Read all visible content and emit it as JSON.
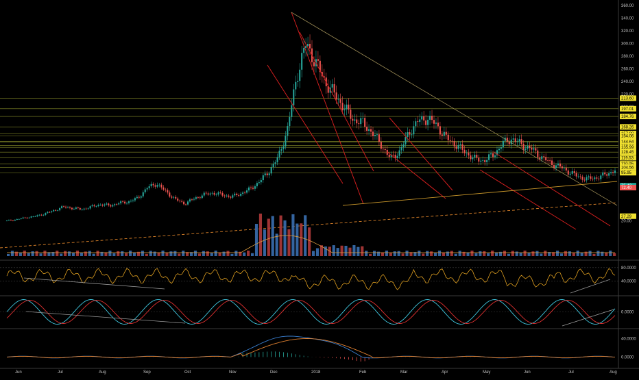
{
  "chart_data": [
    {
      "type": "candlestick",
      "panel": "price",
      "y_ticks": [
        360,
        340,
        320,
        300,
        280,
        260,
        240,
        220,
        200
      ],
      "ylim": [
        0,
        360
      ],
      "price_levels": [
        {
          "label": "213.60",
          "value": 213.6,
          "color": "yellow"
        },
        {
          "label": "197.01",
          "value": 197.01,
          "color": "yellow"
        },
        {
          "label": "184.76",
          "value": 184.76,
          "color": "yellow"
        },
        {
          "label": "168.26",
          "value": 168.26,
          "color": "yellow"
        },
        {
          "label": "157.88",
          "value": 157.88,
          "color": "yellow"
        },
        {
          "label": "154.06",
          "value": 154.06,
          "color": "yellow"
        },
        {
          "label": "145.47",
          "value": 145.47,
          "color": "yellow"
        },
        {
          "label": "144.64",
          "value": 144.64,
          "color": "yellow"
        },
        {
          "label": "138.84",
          "value": 138.84,
          "color": "yellow"
        },
        {
          "label": "135.99",
          "value": 135.99,
          "color": "yellow"
        },
        {
          "label": "128.45",
          "value": 128.45,
          "color": "yellow"
        },
        {
          "label": "119.53",
          "value": 119.53,
          "color": "yellow"
        },
        {
          "label": "110.05",
          "value": 110.05,
          "color": "yellow"
        },
        {
          "label": "104.56",
          "value": 104.56,
          "color": "yellow"
        },
        {
          "label": "95.95",
          "value": 95.95,
          "color": "yellow"
        },
        {
          "label": "75.42",
          "value": 75.42,
          "color": "green"
        },
        {
          "label": "72.40",
          "value": 72.4,
          "color": "red"
        },
        {
          "label": "27.29",
          "value": 27.29,
          "color": "yellow"
        },
        {
          "label": "20.00",
          "value": 20,
          "color": "none"
        }
      ],
      "months": [
        "Jun",
        "Jul",
        "Aug",
        "Sep",
        "Oct",
        "Nov",
        "Dec",
        "2018",
        "Feb",
        "Mar",
        "Apr",
        "May",
        "Jun",
        "Jul",
        "Aug"
      ],
      "closes": [
        20,
        22,
        25,
        27,
        31,
        36,
        42,
        40,
        38,
        42,
        46,
        44,
        48,
        50,
        56,
        72,
        79,
        66,
        54,
        47,
        55,
        61,
        64,
        61,
        58,
        63,
        70,
        82,
        98,
        120,
        165,
        250,
        300,
        270,
        240,
        220,
        200,
        180,
        175,
        160,
        140,
        118,
        130,
        160,
        178,
        182,
        170,
        150,
        140,
        128,
        118,
        115,
        124,
        142,
        150,
        140,
        134,
        122,
        112,
        106,
        98,
        90,
        86,
        88,
        93,
        100
      ],
      "colors": {
        "up": "#26a69a",
        "down": "#ef5350",
        "wick": "#808080"
      }
    },
    {
      "type": "line",
      "panel": "rsi",
      "y_ticks": [
        "80.0000",
        "40.0000"
      ],
      "ylim": [
        0,
        100
      ]
    },
    {
      "type": "line",
      "panel": "oscillator",
      "y_ticks": [
        "0.0000"
      ],
      "ylim": [
        -1,
        1
      ]
    },
    {
      "type": "line",
      "panel": "macd",
      "y_ticks": [
        "40.0000",
        "0.0000"
      ],
      "ylim": [
        -20,
        60
      ]
    }
  ]
}
